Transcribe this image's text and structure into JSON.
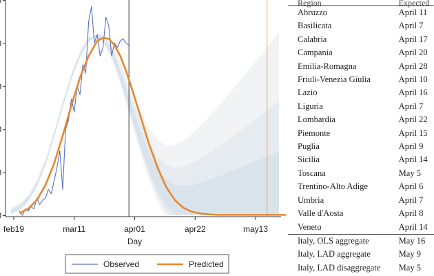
{
  "chart_data": {
    "type": "line",
    "xlabel": "Day",
    "ylabel": "",
    "x_ticks": [
      "feb19",
      "mar11",
      "apr01",
      "apr22",
      "may13"
    ],
    "y_ticks": [
      "0",
      "0",
      "0",
      "0",
      "0",
      "0"
    ],
    "x_range_days": [
      0,
      95
    ],
    "y_range": [
      0,
      5
    ],
    "vertical_lines": [
      {
        "day": 40,
        "color": "#333333"
      },
      {
        "day": 88,
        "color": "#e8a070"
      }
    ],
    "series": [
      {
        "name": "Observed",
        "color": "#5a6fc4",
        "x": [
          2,
          3,
          4,
          5,
          6,
          7,
          8,
          9,
          10,
          11,
          12,
          13,
          14,
          15,
          16,
          17,
          18,
          19,
          20,
          21,
          22,
          23,
          24,
          25,
          26,
          27,
          28,
          29,
          30,
          31,
          32,
          33,
          34,
          35,
          36,
          37,
          38,
          39,
          40
        ],
        "y": [
          0.1,
          0.0,
          0.15,
          0.1,
          0.2,
          0.15,
          0.4,
          0.25,
          0.35,
          0.4,
          0.6,
          0.5,
          0.8,
          1.1,
          1.5,
          0.6,
          2.0,
          2.2,
          2.7,
          2.4,
          3.0,
          2.8,
          3.5,
          3.3,
          4.5,
          4.85,
          4.0,
          4.2,
          3.7,
          3.9,
          4.6,
          4.4,
          3.7,
          4.0,
          3.9,
          4.05,
          4.1,
          4.0,
          3.95
        ]
      },
      {
        "name": "Predicted",
        "color": "#e8872a",
        "x": [
          2,
          5,
          8,
          11,
          14,
          17,
          20,
          23,
          26,
          29,
          31,
          33,
          35,
          37,
          39,
          41,
          44,
          47,
          50,
          53,
          56,
          59,
          62,
          65,
          68,
          71,
          75,
          80,
          85,
          90,
          95
        ],
        "y": [
          0.05,
          0.15,
          0.35,
          0.7,
          1.2,
          1.85,
          2.55,
          3.2,
          3.7,
          4.05,
          4.12,
          4.1,
          3.95,
          3.7,
          3.35,
          2.95,
          2.3,
          1.65,
          1.1,
          0.65,
          0.35,
          0.17,
          0.08,
          0.04,
          0.02,
          0.01,
          0.01,
          0.01,
          0.01,
          0.01,
          0.01
        ]
      }
    ],
    "legend": {
      "position": "bottom",
      "entries": [
        "Observed",
        "Predicted"
      ]
    }
  },
  "table": {
    "headers": [
      "Region",
      "Expected"
    ],
    "rows": [
      [
        "Abruzzo",
        "April 11"
      ],
      [
        "Basilicata",
        "April 7"
      ],
      [
        "Calabria",
        "April 17"
      ],
      [
        "Campania",
        "April 20"
      ],
      [
        "Emilia-Romagna",
        "April 28"
      ],
      [
        "Friuli-Venezia Giulia",
        "April 10"
      ],
      [
        "Lazio",
        "April 16"
      ],
      [
        "Liguria",
        "April 7"
      ],
      [
        "Lombardia",
        "April 22"
      ],
      [
        "Piemonte",
        "April 15"
      ],
      [
        "Puglia",
        "April 9"
      ],
      [
        "Sicilia",
        "April 14"
      ],
      [
        "Toscana",
        "May 5"
      ],
      [
        "Trentino-Alto Adige",
        "April 6"
      ],
      [
        "Umbria",
        "April 7"
      ],
      [
        "Valle d'Aosta",
        "April 8"
      ],
      [
        "Veneto",
        "April 14"
      ]
    ],
    "aggregate_rows": [
      [
        "Italy, OLS aggregate",
        "May 16"
      ],
      [
        "Italy, LAD aggregate",
        "May 9"
      ],
      [
        "Italy, LAD disaggregate",
        "May 5"
      ]
    ]
  }
}
